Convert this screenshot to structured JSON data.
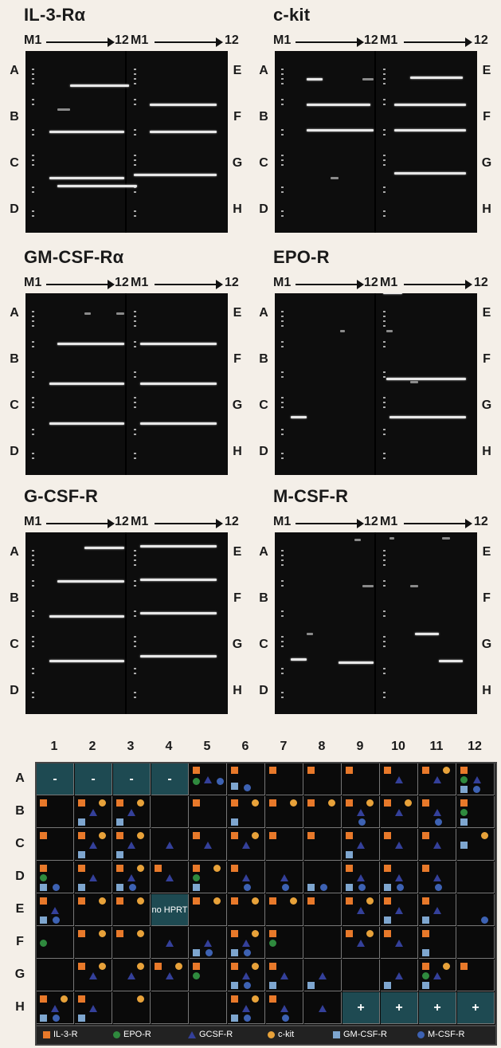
{
  "gels": [
    {
      "title": "IL-3-Rα",
      "axis_start": "M1",
      "axis_end": "12",
      "left_rows": [
        "A",
        "B",
        "C",
        "D"
      ],
      "right_rows": [
        "E",
        "F",
        "G",
        "H"
      ]
    },
    {
      "title": "c-kit",
      "axis_start": "M1",
      "axis_end": "12",
      "left_rows": [
        "A",
        "B",
        "C",
        "D"
      ],
      "right_rows": [
        "E",
        "F",
        "G",
        "H"
      ]
    },
    {
      "title": "GM-CSF-Rα",
      "axis_start": "M1",
      "axis_end": "12",
      "left_rows": [
        "A",
        "B",
        "C",
        "D"
      ],
      "right_rows": [
        "E",
        "F",
        "G",
        "H"
      ]
    },
    {
      "title": "EPO-R",
      "axis_start": "M1",
      "axis_end": "12",
      "left_rows": [
        "A",
        "B",
        "C",
        "D"
      ],
      "right_rows": [
        "E",
        "F",
        "G",
        "H"
      ]
    },
    {
      "title": "G-CSF-R",
      "axis_start": "M1",
      "axis_end": "12",
      "left_rows": [
        "A",
        "B",
        "C",
        "D"
      ],
      "right_rows": [
        "E",
        "F",
        "G",
        "H"
      ]
    },
    {
      "title": "M-CSF-R",
      "axis_start": "M1",
      "axis_end": "12",
      "left_rows": [
        "A",
        "B",
        "C",
        "D"
      ],
      "right_rows": [
        "E",
        "F",
        "G",
        "H"
      ]
    }
  ],
  "summary": {
    "columns": [
      "1",
      "2",
      "3",
      "4",
      "5",
      "6",
      "7",
      "8",
      "9",
      "10",
      "11",
      "12"
    ],
    "rows": [
      "A",
      "B",
      "C",
      "D",
      "E",
      "F",
      "G",
      "H"
    ],
    "neg_label": "-",
    "pos_label": "+",
    "no_hprt_label": "no HPRT",
    "marker_colors": {
      "IL-3-R": "#e8792a",
      "EPO-R": "#2f8a3e",
      "GCSF-R": "#34409a",
      "c-kit": "#e8a23a",
      "GM-CSF-R": "#7ea6cf",
      "M-CSF-R": "#3d62b3"
    },
    "highlight_color": "#1e4a52"
  },
  "legend": [
    {
      "label": "IL-3-R",
      "icon": "orange-square"
    },
    {
      "label": "EPO-R",
      "icon": "green-circle"
    },
    {
      "label": "GCSF-R",
      "icon": "blue-triangle"
    },
    {
      "label": "c-kit",
      "icon": "yellow-circle"
    },
    {
      "label": "GM-CSF-R",
      "icon": "light-blue-square"
    },
    {
      "label": "M-CSF-R",
      "icon": "blue-circle"
    }
  ]
}
